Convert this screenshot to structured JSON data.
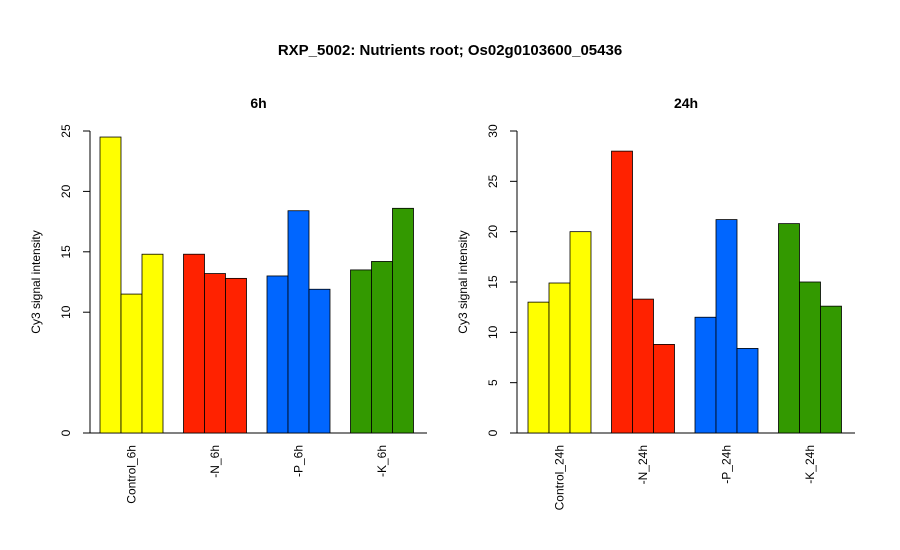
{
  "figure": {
    "title": "RXP_5002: Nutrients root; Os02g0103600_05436"
  },
  "colors": {
    "Control": "#ffff00",
    "N": "#ff2200",
    "P": "#0066ff",
    "K": "#339900"
  },
  "chart_data": [
    {
      "type": "bar",
      "title": "6h",
      "ylabel": "Cy3 signal intensity",
      "ylim": [
        0,
        25
      ],
      "yticks": [
        0,
        10,
        15,
        20,
        25
      ],
      "categories": [
        "Control_6h",
        "-N_6h",
        "-P_6h",
        "-K_6h"
      ],
      "category_colors": [
        "Control",
        "N",
        "P",
        "K"
      ],
      "replicates": [
        [
          24.5,
          11.5,
          14.8
        ],
        [
          14.8,
          13.2,
          12.8
        ],
        [
          13.0,
          18.4,
          11.9
        ],
        [
          13.5,
          14.2,
          18.6
        ]
      ]
    },
    {
      "type": "bar",
      "title": "24h",
      "ylabel": "Cy3 signal intensity",
      "ylim": [
        0,
        30
      ],
      "yticks": [
        0,
        5,
        10,
        15,
        20,
        25,
        30
      ],
      "categories": [
        "Control_24h",
        "-N_24h",
        "-P_24h",
        "-K_24h"
      ],
      "category_colors": [
        "Control",
        "N",
        "P",
        "K"
      ],
      "replicates": [
        [
          13.0,
          14.9,
          20.0
        ],
        [
          28.0,
          13.3,
          8.8
        ],
        [
          11.5,
          21.2,
          8.4
        ],
        [
          20.8,
          15.0,
          12.6
        ]
      ]
    }
  ]
}
